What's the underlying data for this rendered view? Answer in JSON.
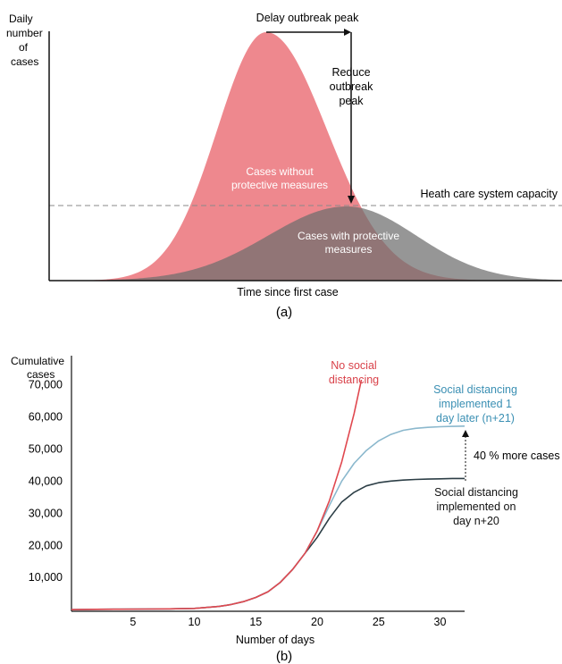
{
  "chart_data": [
    {
      "type": "area",
      "panel_label": "(a)",
      "ylabel": [
        "Daily",
        "number",
        "of",
        "cases"
      ],
      "xlabel": "Time since first case",
      "threshold_label": "Heath care system capacity",
      "annotations": {
        "delay": "Delay outbreak peak",
        "reduce": [
          "Reduce",
          "outbreak",
          "peak"
        ]
      },
      "series": [
        {
          "name": "Cases without protective measures",
          "label_lines": [
            "Cases without",
            "protective measures"
          ],
          "color": "#e9666e"
        },
        {
          "name": "Cases with protective measures",
          "label_lines": [
            "Cases with protective",
            "measures"
          ],
          "color": "#7d7d7d"
        }
      ]
    },
    {
      "type": "line",
      "panel_label": "(b)",
      "ylabel": [
        "Cumulative",
        "cases"
      ],
      "xlabel": "Number of days",
      "xticks": [
        5,
        10,
        15,
        20,
        25,
        30
      ],
      "yticks": [
        10000,
        20000,
        30000,
        40000,
        50000,
        60000,
        70000
      ],
      "ytick_labels": [
        "10,000",
        "20,000",
        "30,000",
        "40,000",
        "50,000",
        "60,000",
        "70,000"
      ],
      "xlim": [
        0,
        32
      ],
      "ylim": [
        -500,
        79000
      ],
      "annotation": "40 % more cases",
      "series": [
        {
          "name": "No social distancing",
          "label_lines": [
            "No social",
            "distancing"
          ],
          "color": "#e0484f",
          "x": [
            0,
            2,
            4,
            6,
            8,
            10,
            12,
            13,
            14,
            15,
            16,
            17,
            18,
            19,
            20,
            21,
            22,
            23,
            23.6
          ],
          "y": [
            0,
            100,
            150,
            200,
            250,
            400,
            1000,
            1600,
            2500,
            3800,
            5600,
            8500,
            12500,
            17500,
            24500,
            34000,
            46000,
            61000,
            71500
          ]
        },
        {
          "name": "Social distancing implemented 1 day later (n+21)",
          "label_lines": [
            "Social distancing",
            "implemented 1",
            "day later (n+21)"
          ],
          "color": "#8bb8cd",
          "x": [
            0,
            2,
            4,
            6,
            8,
            10,
            12,
            13,
            14,
            15,
            16,
            17,
            18,
            19,
            20,
            21,
            22,
            23,
            24,
            25,
            26,
            27,
            28,
            29,
            30,
            31,
            32
          ],
          "y": [
            0,
            100,
            150,
            200,
            250,
            400,
            1000,
            1600,
            2500,
            3800,
            5600,
            8500,
            12500,
            17500,
            24500,
            32500,
            40000,
            45500,
            49500,
            52500,
            54500,
            55800,
            56400,
            56700,
            56900,
            57000,
            57100
          ]
        },
        {
          "name": "Social distancing implemented on day n+20",
          "label_lines": [
            "Social distancing",
            "implemented on",
            "day n+20"
          ],
          "color": "#2c3e46",
          "x": [
            0,
            2,
            4,
            6,
            8,
            10,
            12,
            13,
            14,
            15,
            16,
            17,
            18,
            19,
            20,
            21,
            22,
            23,
            24,
            25,
            26,
            27,
            28,
            29,
            30,
            31,
            32
          ],
          "y": [
            0,
            100,
            150,
            200,
            250,
            400,
            1000,
            1600,
            2500,
            3800,
            5600,
            8500,
            12500,
            17500,
            22500,
            28500,
            33500,
            36500,
            38500,
            39500,
            40000,
            40300,
            40500,
            40600,
            40700,
            40800,
            40800
          ]
        }
      ]
    }
  ]
}
